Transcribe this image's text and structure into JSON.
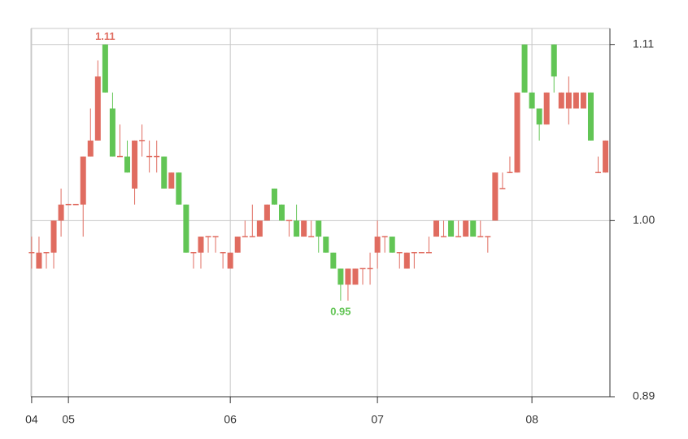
{
  "chart_data": {
    "type": "candlestick",
    "x": [
      0,
      1,
      2,
      3,
      4,
      5,
      6,
      7,
      8,
      9,
      10,
      11,
      12,
      13,
      14,
      15,
      16,
      17,
      18,
      19,
      20,
      21,
      22,
      23,
      24,
      25,
      26,
      27,
      28,
      29,
      30,
      31,
      32,
      33,
      34,
      35,
      36,
      37,
      38,
      39,
      40,
      41,
      42,
      43,
      44,
      45,
      46,
      47,
      48,
      49,
      50,
      51,
      52,
      53,
      54,
      55,
      56,
      57,
      58,
      59,
      60,
      61,
      62,
      63,
      64,
      65,
      66,
      67,
      68,
      69,
      70,
      71,
      72,
      73,
      74,
      75,
      76,
      77,
      78
    ],
    "open": [
      0.98,
      0.97,
      0.98,
      0.98,
      1.0,
      1.01,
      1.01,
      1.01,
      1.04,
      1.05,
      1.11,
      1.07,
      1.04,
      1.04,
      1.02,
      1.05,
      1.04,
      1.04,
      1.04,
      1.02,
      1.03,
      1.01,
      0.98,
      0.98,
      0.99,
      0.99,
      0.98,
      0.97,
      0.98,
      0.99,
      0.99,
      0.99,
      1.0,
      1.02,
      1.01,
      1.0,
      1.0,
      0.99,
      0.99,
      1.0,
      0.99,
      0.98,
      0.97,
      0.96,
      0.96,
      0.97,
      0.97,
      0.98,
      0.99,
      0.99,
      0.98,
      0.97,
      0.98,
      0.98,
      0.98,
      0.99,
      0.99,
      1.0,
      0.99,
      0.99,
      1.0,
      0.99,
      0.99,
      1.0,
      1.02,
      1.03,
      1.03,
      1.11,
      1.08,
      1.07,
      1.06,
      1.11,
      1.07,
      1.07,
      1.07,
      1.07,
      1.08,
      1.03,
      1.03
    ],
    "high": [
      0.99,
      0.99,
      0.98,
      1.0,
      1.02,
      1.01,
      1.01,
      1.04,
      1.07,
      1.1,
      1.11,
      1.08,
      1.06,
      1.05,
      1.05,
      1.06,
      1.05,
      1.05,
      1.04,
      1.03,
      1.03,
      1.01,
      0.98,
      0.99,
      0.99,
      0.99,
      0.98,
      0.98,
      0.99,
      1.0,
      1.01,
      1.0,
      1.01,
      1.02,
      1.01,
      1.0,
      1.01,
      1.0,
      1.0,
      1.0,
      0.99,
      0.98,
      0.97,
      0.97,
      0.97,
      0.97,
      0.98,
      1.0,
      0.99,
      0.99,
      0.98,
      0.98,
      0.98,
      0.98,
      0.99,
      1.0,
      1.0,
      1.0,
      1.0,
      1.0,
      1.0,
      1.0,
      0.99,
      1.03,
      1.03,
      1.04,
      1.08,
      1.11,
      1.08,
      1.07,
      1.08,
      1.11,
      1.08,
      1.09,
      1.08,
      1.08,
      1.08,
      1.04,
      1.05
    ],
    "low": [
      0.97,
      0.97,
      0.97,
      0.97,
      0.99,
      1.01,
      1.01,
      0.99,
      1.04,
      1.05,
      1.08,
      1.04,
      1.04,
      1.03,
      1.01,
      1.04,
      1.03,
      1.03,
      1.02,
      1.02,
      1.01,
      0.98,
      0.97,
      0.97,
      0.98,
      0.98,
      0.97,
      0.97,
      0.98,
      0.99,
      0.99,
      0.99,
      1.0,
      1.01,
      1.0,
      0.99,
      0.99,
      0.99,
      0.99,
      0.98,
      0.98,
      0.97,
      0.95,
      0.95,
      0.96,
      0.96,
      0.96,
      0.97,
      0.98,
      0.98,
      0.97,
      0.97,
      0.97,
      0.98,
      0.98,
      0.99,
      0.99,
      0.99,
      0.99,
      0.99,
      0.99,
      0.99,
      0.98,
      1.0,
      1.02,
      1.03,
      1.03,
      1.08,
      1.07,
      1.05,
      1.06,
      1.08,
      1.07,
      1.06,
      1.07,
      1.07,
      1.05,
      1.03,
      1.03
    ],
    "close": [
      0.98,
      0.98,
      0.98,
      1.0,
      1.01,
      1.01,
      1.01,
      1.04,
      1.05,
      1.09,
      1.08,
      1.04,
      1.04,
      1.03,
      1.05,
      1.05,
      1.04,
      1.04,
      1.02,
      1.03,
      1.01,
      0.98,
      0.98,
      0.99,
      0.99,
      0.99,
      0.98,
      0.98,
      0.99,
      0.99,
      0.99,
      1.0,
      1.01,
      1.01,
      1.0,
      1.0,
      0.99,
      1.0,
      0.99,
      0.99,
      0.98,
      0.97,
      0.96,
      0.97,
      0.97,
      0.97,
      0.97,
      0.99,
      0.99,
      0.98,
      0.98,
      0.98,
      0.98,
      0.98,
      0.98,
      1.0,
      0.99,
      0.99,
      0.99,
      1.0,
      0.99,
      0.99,
      0.99,
      1.03,
      1.02,
      1.03,
      1.08,
      1.08,
      1.07,
      1.06,
      1.08,
      1.09,
      1.08,
      1.08,
      1.08,
      1.08,
      1.05,
      1.03,
      1.05
    ],
    "up_color": "#e06c60",
    "down_color": "#62c555",
    "xlim": [
      -0.1,
      78.6
    ],
    "xticks": [
      {
        "value": 0,
        "label": "04"
      },
      {
        "value": 5,
        "label": "05"
      },
      {
        "value": 27,
        "label": "06"
      },
      {
        "value": 47,
        "label": "07"
      },
      {
        "value": 68,
        "label": "08"
      }
    ],
    "ylim": [
      0.89,
      1.12
    ],
    "yticks": [
      0.89,
      {
        "value": 1,
        "label": "1.00"
      },
      1.11
    ],
    "grid": true,
    "annotations": [
      {
        "text": "1.11",
        "x": 10,
        "y": 1.11,
        "color": "#e06c60",
        "position": "above"
      },
      {
        "text": "0.95",
        "x": 42,
        "y": 0.95,
        "color": "#62c555",
        "position": "below"
      }
    ]
  }
}
